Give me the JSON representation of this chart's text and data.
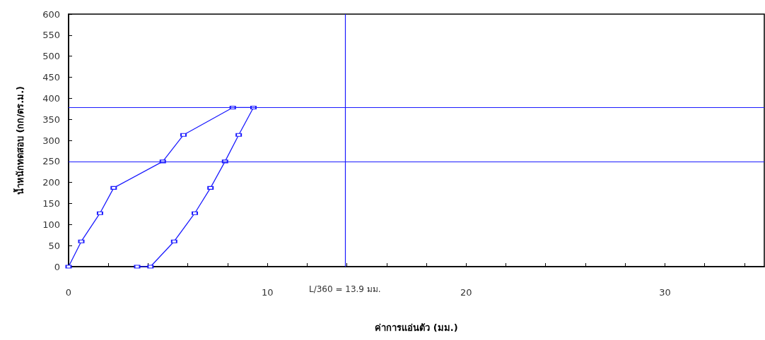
{
  "chart_data": {
    "type": "line",
    "xlabel": "ค่าการแอ่นตัว (มม.)",
    "ylabel": "น้ำหนักทดสอบ (กก/ตร.ม.)",
    "series": [
      {
        "color": "#1a1aff",
        "x": [
          0,
          0.64,
          1.58,
          2.27,
          4.74,
          5.78,
          8.26,
          9.3,
          8.56,
          7.87,
          7.14,
          6.35,
          5.31,
          4.12,
          3.45
        ],
        "values": [
          0,
          60,
          127,
          187,
          250,
          313,
          378,
          378,
          313,
          250,
          187,
          127,
          60,
          0,
          0
        ]
      }
    ],
    "xlim": [
      0,
      35
    ],
    "ylim": [
      0,
      600
    ],
    "xticks": [
      0,
      {
        "value": 2,
        "label": null
      },
      {
        "value": 4,
        "label": null
      },
      {
        "value": 6,
        "label": null
      },
      {
        "value": 8,
        "label": null
      },
      10,
      {
        "value": 12,
        "label": null
      },
      {
        "value": 14,
        "label": null
      },
      {
        "value": 16,
        "label": null
      },
      {
        "value": 18,
        "label": null
      },
      20,
      {
        "value": 22,
        "label": null
      },
      {
        "value": 24,
        "label": null
      },
      {
        "value": 26,
        "label": null
      },
      {
        "value": 28,
        "label": null
      },
      30,
      {
        "value": 32,
        "label": null
      },
      {
        "value": 34,
        "label": null
      }
    ],
    "yticks": [
      0,
      50,
      100,
      150,
      200,
      250,
      300,
      350,
      400,
      450,
      500,
      550,
      600
    ],
    "ref_lines": [
      {
        "axis": "y",
        "value": 378,
        "color": "#1a1aff"
      },
      {
        "axis": "y",
        "value": 250,
        "color": "#1a1aff"
      },
      {
        "axis": "x",
        "value": 13.9,
        "label": "L/360 = 13.9 มม.",
        "color": "#1a1aff"
      }
    ],
    "grid": false,
    "marker": "square",
    "line_style": "solid"
  }
}
